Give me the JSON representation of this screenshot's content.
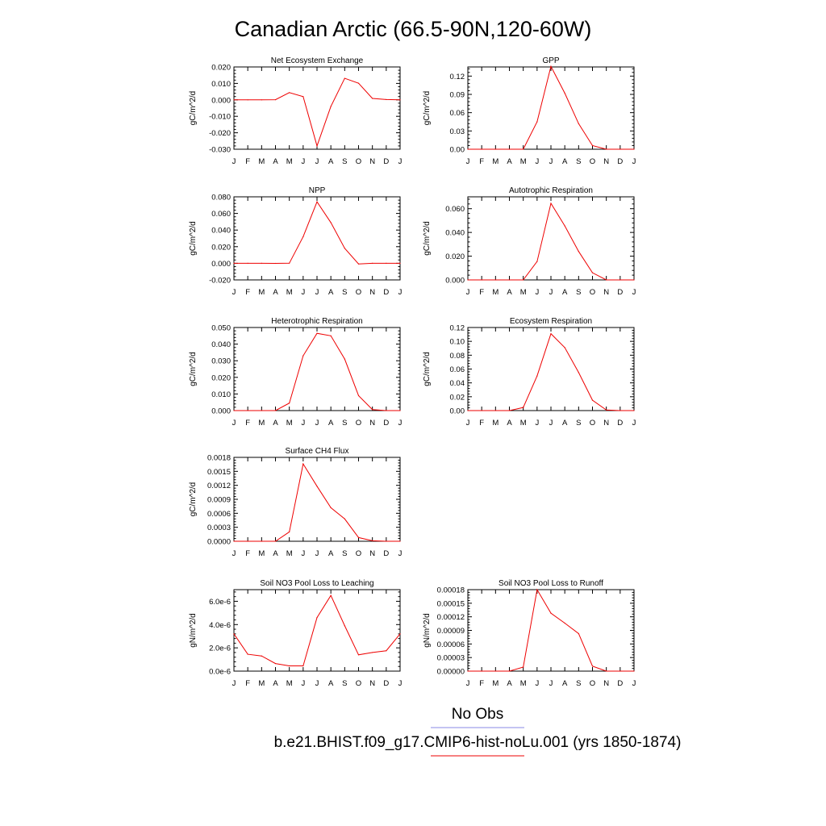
{
  "figure": {
    "title": "Canadian Arctic (66.5-90N,120-60W)",
    "legend": {
      "obs_label": "No Obs",
      "obs_color": "#8a8ae6",
      "model_label": "b.e21.BHIST.f09_g17.CMIP6-hist-noLu.001 (yrs 1850-1874)",
      "model_color": "#ee0000"
    },
    "colors": {
      "line": "#ee0000",
      "axis": "#000000"
    }
  },
  "chart_data": [
    {
      "type": "line",
      "title": "Net Ecosystem Exchange",
      "ylabel": "gC/m^2/d",
      "xlabel": "",
      "x": [
        "J",
        "F",
        "M",
        "A",
        "M",
        "J",
        "J",
        "A",
        "S",
        "O",
        "N",
        "D",
        "J"
      ],
      "ylim": [
        -0.03,
        0.02
      ],
      "yticks": [
        -0.03,
        -0.02,
        -0.01,
        0.0,
        0.01,
        0.02
      ],
      "ytick_labels": [
        "-0.030",
        "-0.020",
        "-0.010",
        "0.000",
        "0.010",
        "0.020"
      ],
      "series": [
        {
          "values": [
            0.0,
            0.0,
            0.0,
            0.0001,
            0.0044,
            0.002,
            -0.028,
            -0.004,
            0.0131,
            0.0101,
            0.0009,
            0.0002,
            0.0
          ]
        }
      ]
    },
    {
      "type": "line",
      "title": "GPP",
      "ylabel": "gC/m^2/d",
      "xlabel": "",
      "x": [
        "J",
        "F",
        "M",
        "A",
        "M",
        "J",
        "J",
        "A",
        "S",
        "O",
        "N",
        "D",
        "J"
      ],
      "ylim": [
        0,
        0.135
      ],
      "yticks": [
        0,
        0.03,
        0.06,
        0.09,
        0.12
      ],
      "ytick_labels": [
        "0.00",
        "0.03",
        "0.06",
        "0.09",
        "0.12"
      ],
      "series": [
        {
          "values": [
            0.0,
            0.0,
            0.0,
            0.0,
            0.0,
            0.045,
            0.136,
            0.092,
            0.042,
            0.006,
            0.0,
            0.0,
            0.0
          ]
        }
      ]
    },
    {
      "type": "line",
      "title": "NPP",
      "ylabel": "gC/m^2/d",
      "xlabel": "",
      "x": [
        "J",
        "F",
        "M",
        "A",
        "M",
        "J",
        "J",
        "A",
        "S",
        "O",
        "N",
        "D",
        "J"
      ],
      "ylim": [
        -0.02,
        0.08
      ],
      "yticks": [
        -0.02,
        0.0,
        0.02,
        0.04,
        0.06,
        0.08
      ],
      "ytick_labels": [
        "-0.020",
        "0.000",
        "0.020",
        "0.040",
        "0.060",
        "0.080"
      ],
      "series": [
        {
          "values": [
            0.0,
            0.0,
            0.0,
            -0.0001,
            0.0001,
            0.032,
            0.074,
            0.049,
            0.018,
            -0.0008,
            0.0,
            0.0,
            0.0
          ]
        }
      ]
    },
    {
      "type": "line",
      "title": "Autotrophic Respiration",
      "ylabel": "gC/m^2/d",
      "xlabel": "",
      "x": [
        "J",
        "F",
        "M",
        "A",
        "M",
        "J",
        "J",
        "A",
        "S",
        "O",
        "N",
        "D",
        "J"
      ],
      "ylim": [
        0,
        0.07
      ],
      "yticks": [
        0,
        0.02,
        0.04,
        0.06
      ],
      "ytick_labels": [
        "0.000",
        "0.020",
        "0.040",
        "0.060"
      ],
      "series": [
        {
          "values": [
            0.0,
            0.0,
            0.0,
            0.0,
            0.0,
            0.0155,
            0.0645,
            0.0455,
            0.024,
            0.006,
            0.0,
            0.0,
            0.0
          ]
        }
      ]
    },
    {
      "type": "line",
      "title": "Heterotrophic Respiration",
      "ylabel": "gC/m^2/d",
      "xlabel": "",
      "x": [
        "J",
        "F",
        "M",
        "A",
        "M",
        "J",
        "J",
        "A",
        "S",
        "O",
        "N",
        "D",
        "J"
      ],
      "ylim": [
        0,
        0.05
      ],
      "yticks": [
        0,
        0.01,
        0.02,
        0.03,
        0.04,
        0.05
      ],
      "ytick_labels": [
        "0.000",
        "0.010",
        "0.020",
        "0.030",
        "0.040",
        "0.050"
      ],
      "series": [
        {
          "values": [
            0.0,
            0.0,
            0.0,
            0.0,
            0.0045,
            0.033,
            0.0465,
            0.045,
            0.031,
            0.009,
            0.0006,
            0.0,
            0.0
          ]
        }
      ]
    },
    {
      "type": "line",
      "title": "Ecosystem Respiration",
      "ylabel": "gC/m^2/d",
      "xlabel": "",
      "x": [
        "J",
        "F",
        "M",
        "A",
        "M",
        "J",
        "J",
        "A",
        "S",
        "O",
        "N",
        "D",
        "J"
      ],
      "ylim": [
        0,
        0.12
      ],
      "yticks": [
        0,
        0.02,
        0.04,
        0.06,
        0.08,
        0.1,
        0.12
      ],
      "ytick_labels": [
        "0.00",
        "0.02",
        "0.04",
        "0.06",
        "0.08",
        "0.10",
        "0.12"
      ],
      "series": [
        {
          "values": [
            0.0,
            0.0,
            0.0,
            0.0,
            0.0045,
            0.05,
            0.111,
            0.091,
            0.055,
            0.015,
            0.0009,
            0.0,
            0.0
          ]
        }
      ]
    },
    {
      "type": "line",
      "title": "Surface CH4 Flux",
      "ylabel": "gC/m^2/d",
      "xlabel": "",
      "x": [
        "J",
        "F",
        "M",
        "A",
        "M",
        "J",
        "J",
        "A",
        "S",
        "O",
        "N",
        "D",
        "J"
      ],
      "ylim": [
        0,
        0.0018
      ],
      "yticks": [
        0,
        0.0003,
        0.0006,
        0.0009,
        0.0012,
        0.0015,
        0.0018
      ],
      "ytick_labels": [
        "0.0000",
        "0.0003",
        "0.0006",
        "0.0009",
        "0.0012",
        "0.0015",
        "0.0018"
      ],
      "series": [
        {
          "values": [
            0.0,
            0.0,
            0.0,
            0.0,
            0.0002,
            0.00166,
            0.00118,
            0.00072,
            0.00048,
            8e-05,
            1e-05,
            0.0,
            0.0
          ]
        }
      ]
    },
    {
      "type": "line",
      "title": "Soil NO3 Pool Loss to Leaching",
      "ylabel": "gN/m^2/d",
      "xlabel": "",
      "x": [
        "J",
        "F",
        "M",
        "A",
        "M",
        "J",
        "J",
        "A",
        "S",
        "O",
        "N",
        "D",
        "J"
      ],
      "ylim": [
        0,
        7e-06
      ],
      "yticks": [
        0,
        2e-06,
        4e-06,
        6e-06
      ],
      "ytick_labels": [
        "0.0e-6",
        "2.0e-6",
        "4.0e-6",
        "6.0e-6"
      ],
      "series": [
        {
          "values": [
            3.2e-06,
            1.45e-06,
            1.3e-06,
            6.5e-07,
            4.5e-07,
            4.5e-07,
            4.6e-06,
            6.5e-06,
            3.9e-06,
            1.4e-06,
            1.6e-06,
            1.75e-06,
            3.2e-06
          ]
        }
      ]
    },
    {
      "type": "line",
      "title": "Soil NO3 Pool Loss to Runoff",
      "ylabel": "gN/m^2/d",
      "xlabel": "",
      "x": [
        "J",
        "F",
        "M",
        "A",
        "M",
        "J",
        "J",
        "A",
        "S",
        "O",
        "N",
        "D",
        "J"
      ],
      "ylim": [
        0,
        0.00018
      ],
      "yticks": [
        0,
        3e-05,
        6e-05,
        9e-05,
        0.00012,
        0.00015,
        0.00018
      ],
      "ytick_labels": [
        "0.00000",
        "0.00003",
        "0.00006",
        "0.00009",
        "0.00012",
        "0.00015",
        "0.00018"
      ],
      "series": [
        {
          "values": [
            0.0,
            0.0,
            0.0,
            0.0,
            9e-06,
            0.00018,
            0.000128,
            0.000106,
            8.3e-05,
            1.1e-05,
            0.0,
            0.0,
            0.0
          ]
        }
      ]
    }
  ]
}
